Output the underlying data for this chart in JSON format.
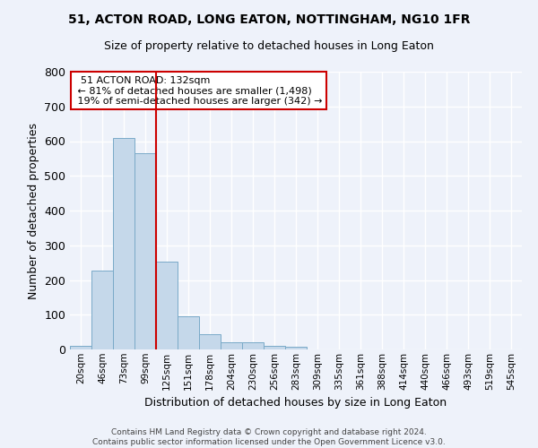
{
  "title": "51, ACTON ROAD, LONG EATON, NOTTINGHAM, NG10 1FR",
  "subtitle": "Size of property relative to detached houses in Long Eaton",
  "xlabel": "Distribution of detached houses by size in Long Eaton",
  "ylabel": "Number of detached properties",
  "bar_color": "#c5d8ea",
  "bar_edge_color": "#7aaac8",
  "background_color": "#eef2fa",
  "grid_color": "#ffffff",
  "categories": [
    "20sqm",
    "46sqm",
    "73sqm",
    "99sqm",
    "125sqm",
    "151sqm",
    "178sqm",
    "204sqm",
    "230sqm",
    "256sqm",
    "283sqm",
    "309sqm",
    "335sqm",
    "361sqm",
    "388sqm",
    "414sqm",
    "440sqm",
    "466sqm",
    "493sqm",
    "519sqm",
    "545sqm"
  ],
  "values": [
    10,
    228,
    610,
    565,
    253,
    95,
    43,
    20,
    20,
    10,
    8,
    0,
    0,
    0,
    0,
    0,
    0,
    0,
    0,
    0,
    0
  ],
  "ylim": [
    0,
    800
  ],
  "yticks": [
    0,
    100,
    200,
    300,
    400,
    500,
    600,
    700,
    800
  ],
  "vline_x": 3.5,
  "vline_color": "#cc0000",
  "annotation_text": "  51 ACTON ROAD: 132sqm  \n ← 81% of detached houses are smaller (1,498)\n 19% of semi-detached houses are larger (342) →",
  "annotation_box_color": "#ffffff",
  "annotation_box_edge_color": "#cc0000",
  "footer_line1": "Contains HM Land Registry data © Crown copyright and database right 2024.",
  "footer_line2": "Contains public sector information licensed under the Open Government Licence v3.0."
}
